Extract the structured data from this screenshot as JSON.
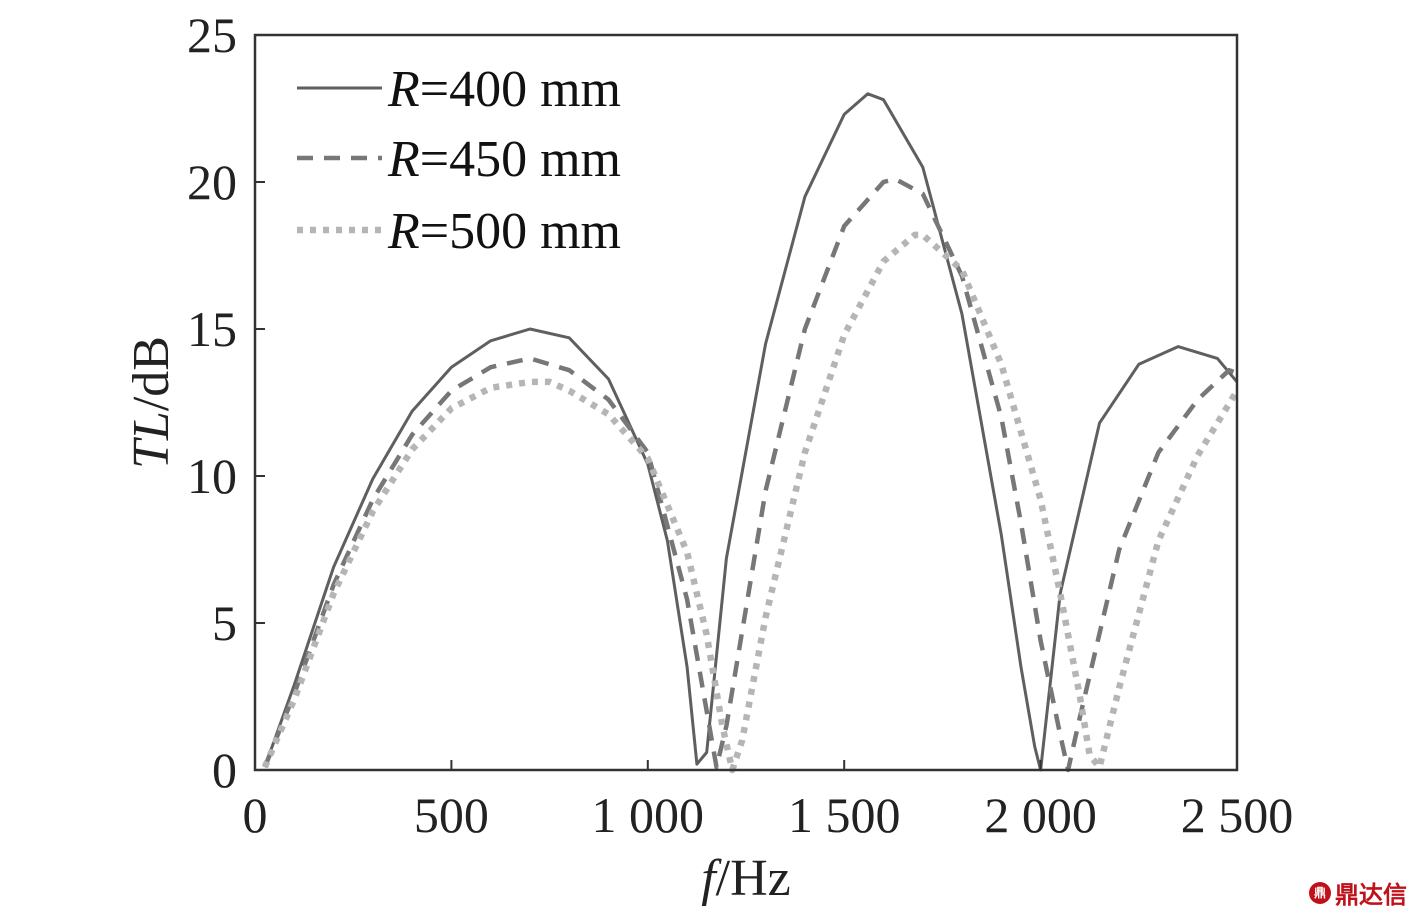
{
  "chart_data": {
    "type": "line",
    "xlabel": {
      "italic": "f",
      "rest": "/Hz"
    },
    "ylabel": {
      "italic": "TL",
      "rest": "/dB"
    },
    "xlim": [
      0,
      2500
    ],
    "ylim": [
      0,
      25
    ],
    "xticks": [
      0,
      500,
      1000,
      1500,
      2000,
      2500
    ],
    "xtick_labels": [
      "0",
      "500",
      "1 000",
      "1 500",
      "2 000",
      "2 500"
    ],
    "yticks": [
      0,
      5,
      10,
      15,
      20,
      25
    ],
    "ytick_labels": [
      "0",
      "5",
      "10",
      "15",
      "20",
      "25"
    ],
    "grid": false,
    "legend_position": "top-left",
    "series": [
      {
        "name": "R=400 mm",
        "name_italic": "R",
        "name_rest": "=400 mm",
        "style": "solid",
        "color": "#5f5f5f",
        "x": [
          25,
          100,
          200,
          300,
          400,
          500,
          600,
          700,
          800,
          900,
          1000,
          1050,
          1100,
          1125,
          1150,
          1200,
          1300,
          1400,
          1500,
          1560,
          1600,
          1700,
          1800,
          1900,
          1950,
          1985,
          2000,
          2050,
          2150,
          2250,
          2350,
          2450,
          2500
        ],
        "y": [
          0.1,
          2.9,
          6.9,
          9.9,
          12.2,
          13.7,
          14.6,
          15.0,
          14.7,
          13.3,
          10.4,
          7.8,
          3.5,
          0.2,
          0.6,
          7.2,
          14.5,
          19.5,
          22.3,
          23.0,
          22.8,
          20.5,
          15.5,
          8.0,
          3.5,
          0.8,
          0.0,
          6.0,
          11.8,
          13.8,
          14.4,
          14.0,
          13.2
        ]
      },
      {
        "name": "R=450 mm",
        "name_italic": "R",
        "name_rest": "=450 mm",
        "style": "dashed",
        "color": "#777777",
        "x": [
          25,
          100,
          200,
          300,
          400,
          500,
          600,
          700,
          800,
          900,
          1000,
          1100,
          1150,
          1175,
          1200,
          1300,
          1400,
          1500,
          1600,
          1630,
          1700,
          1800,
          1900,
          1950,
          2000,
          2050,
          2070,
          2100,
          2200,
          2300,
          2400,
          2480,
          2500
        ],
        "y": [
          0.1,
          2.6,
          6.3,
          9.2,
          11.4,
          12.9,
          13.7,
          14.0,
          13.6,
          12.6,
          10.8,
          5.8,
          2.0,
          0.1,
          1.5,
          9.5,
          15.0,
          18.5,
          20.0,
          20.1,
          19.6,
          16.8,
          12.0,
          8.4,
          4.4,
          1.2,
          0.0,
          1.8,
          7.5,
          10.8,
          12.6,
          13.6,
          13.5
        ]
      },
      {
        "name": "R=500 mm",
        "name_italic": "R",
        "name_rest": "=500 mm",
        "style": "dotted",
        "color": "#b5b5b5",
        "x": [
          25,
          100,
          200,
          300,
          400,
          500,
          600,
          700,
          750,
          800,
          900,
          1000,
          1100,
          1150,
          1190,
          1215,
          1240,
          1300,
          1400,
          1500,
          1600,
          1680,
          1700,
          1800,
          1900,
          2000,
          2050,
          2100,
          2125,
          2150,
          2200,
          2300,
          2400,
          2500
        ],
        "y": [
          0.1,
          2.4,
          6.0,
          8.8,
          10.9,
          12.3,
          13.0,
          13.2,
          13.2,
          12.9,
          12.1,
          10.6,
          7.4,
          4.6,
          1.5,
          0.0,
          1.0,
          5.2,
          10.8,
          14.8,
          17.3,
          18.2,
          18.2,
          17.0,
          13.8,
          9.2,
          6.0,
          2.5,
          0.5,
          0.1,
          2.8,
          7.8,
          10.7,
          12.9
        ]
      }
    ]
  },
  "watermark": {
    "seal": "鼎",
    "text": "鼎达信"
  }
}
